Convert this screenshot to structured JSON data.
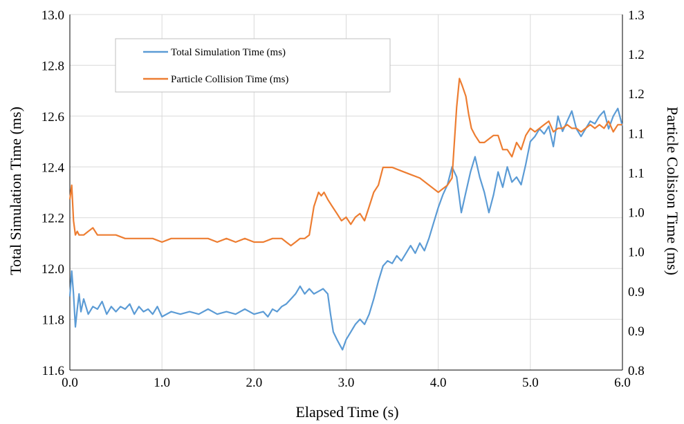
{
  "chart_data": {
    "type": "line",
    "xlabel": "Elapsed Time (s)",
    "ylabel_left": "Total Simulation Time (ms)",
    "ylabel_right": "Particle Colision Time (ms)",
    "x_ticks": [
      "0.0",
      "1.0",
      "2.0",
      "3.0",
      "4.0",
      "5.0",
      "6.0"
    ],
    "y_left_ticks": [
      "11.6",
      "11.8",
      "12.0",
      "12.2",
      "12.4",
      "12.6",
      "12.8",
      "13.0"
    ],
    "y_right_ticks": [
      "0.8",
      "0.9",
      "0.9",
      "1.0",
      "1.0",
      "1.1",
      "1.1",
      "1.2",
      "1.2",
      "1.3"
    ],
    "xlim": [
      0,
      6
    ],
    "ylim_left": [
      11.6,
      13.0
    ],
    "ylim_right": [
      0.8,
      1.3
    ],
    "grid": "on",
    "legend_position": "top-left",
    "series": [
      {
        "name": "Total Simulation Time (ms)",
        "axis": "left",
        "color": "#5b9bd5",
        "x": [
          0.0,
          0.02,
          0.04,
          0.06,
          0.08,
          0.1,
          0.12,
          0.15,
          0.2,
          0.25,
          0.3,
          0.35,
          0.4,
          0.45,
          0.5,
          0.55,
          0.6,
          0.65,
          0.7,
          0.75,
          0.8,
          0.85,
          0.9,
          0.95,
          1.0,
          1.1,
          1.2,
          1.3,
          1.4,
          1.5,
          1.6,
          1.7,
          1.8,
          1.9,
          2.0,
          2.1,
          2.15,
          2.2,
          2.25,
          2.3,
          2.35,
          2.4,
          2.45,
          2.5,
          2.55,
          2.6,
          2.65,
          2.7,
          2.75,
          2.8,
          2.83,
          2.86,
          2.9,
          2.93,
          2.96,
          3.0,
          3.05,
          3.1,
          3.15,
          3.2,
          3.25,
          3.3,
          3.35,
          3.4,
          3.45,
          3.5,
          3.55,
          3.6,
          3.65,
          3.7,
          3.75,
          3.8,
          3.85,
          3.9,
          3.95,
          4.0,
          4.05,
          4.1,
          4.15,
          4.2,
          4.25,
          4.3,
          4.35,
          4.4,
          4.45,
          4.5,
          4.55,
          4.6,
          4.65,
          4.7,
          4.75,
          4.8,
          4.85,
          4.9,
          4.95,
          5.0,
          5.05,
          5.1,
          5.15,
          5.2,
          5.25,
          5.3,
          5.35,
          5.4,
          5.45,
          5.5,
          5.55,
          5.6,
          5.65,
          5.7,
          5.75,
          5.8,
          5.85,
          5.9,
          5.95,
          6.0
        ],
        "values": [
          11.89,
          11.99,
          11.9,
          11.77,
          11.84,
          11.9,
          11.83,
          11.88,
          11.82,
          11.85,
          11.84,
          11.87,
          11.82,
          11.85,
          11.83,
          11.85,
          11.84,
          11.86,
          11.82,
          11.85,
          11.83,
          11.84,
          11.82,
          11.85,
          11.81,
          11.83,
          11.82,
          11.83,
          11.82,
          11.84,
          11.82,
          11.83,
          11.82,
          11.84,
          11.82,
          11.83,
          11.81,
          11.84,
          11.83,
          11.85,
          11.86,
          11.88,
          11.9,
          11.93,
          11.9,
          11.92,
          11.9,
          11.91,
          11.92,
          11.9,
          11.82,
          11.75,
          11.72,
          11.7,
          11.68,
          11.72,
          11.75,
          11.78,
          11.8,
          11.78,
          11.82,
          11.88,
          11.95,
          12.01,
          12.03,
          12.02,
          12.05,
          12.03,
          12.06,
          12.09,
          12.06,
          12.1,
          12.07,
          12.12,
          12.18,
          12.24,
          12.29,
          12.33,
          12.4,
          12.36,
          12.22,
          12.3,
          12.38,
          12.44,
          12.36,
          12.3,
          12.22,
          12.29,
          12.38,
          12.32,
          12.4,
          12.34,
          12.36,
          12.33,
          12.41,
          12.5,
          12.52,
          12.55,
          12.53,
          12.56,
          12.48,
          12.6,
          12.54,
          12.58,
          12.62,
          12.55,
          12.52,
          12.55,
          12.58,
          12.57,
          12.6,
          12.62,
          12.55,
          12.6,
          12.63,
          12.56
        ]
      },
      {
        "name": "Particle Collision Time (ms)",
        "axis": "right",
        "color": "#ed7d31",
        "x": [
          0.0,
          0.02,
          0.04,
          0.06,
          0.08,
          0.1,
          0.15,
          0.2,
          0.25,
          0.3,
          0.4,
          0.5,
          0.6,
          0.7,
          0.8,
          0.9,
          1.0,
          1.1,
          1.2,
          1.3,
          1.4,
          1.5,
          1.6,
          1.7,
          1.8,
          1.9,
          2.0,
          2.1,
          2.2,
          2.3,
          2.35,
          2.4,
          2.45,
          2.5,
          2.55,
          2.6,
          2.65,
          2.7,
          2.73,
          2.76,
          2.8,
          2.85,
          2.9,
          2.95,
          3.0,
          3.05,
          3.1,
          3.15,
          3.2,
          3.25,
          3.3,
          3.35,
          3.4,
          3.45,
          3.5,
          3.6,
          3.7,
          3.8,
          3.9,
          4.0,
          4.05,
          4.1,
          4.15,
          4.2,
          4.23,
          4.26,
          4.3,
          4.33,
          4.36,
          4.4,
          4.45,
          4.5,
          4.55,
          4.6,
          4.65,
          4.7,
          4.75,
          4.8,
          4.85,
          4.9,
          4.95,
          5.0,
          5.05,
          5.1,
          5.15,
          5.2,
          5.25,
          5.3,
          5.35,
          5.4,
          5.45,
          5.5,
          5.55,
          5.6,
          5.65,
          5.7,
          5.75,
          5.8,
          5.85,
          5.9,
          5.95,
          6.0
        ],
        "values": [
          1.04,
          1.06,
          1.01,
          0.99,
          0.995,
          0.99,
          0.99,
          0.995,
          1.0,
          0.99,
          0.99,
          0.99,
          0.985,
          0.985,
          0.985,
          0.985,
          0.98,
          0.985,
          0.985,
          0.985,
          0.985,
          0.985,
          0.98,
          0.985,
          0.98,
          0.985,
          0.98,
          0.98,
          0.985,
          0.985,
          0.98,
          0.975,
          0.98,
          0.985,
          0.985,
          0.99,
          1.03,
          1.05,
          1.045,
          1.05,
          1.04,
          1.03,
          1.02,
          1.01,
          1.015,
          1.005,
          1.015,
          1.02,
          1.01,
          1.03,
          1.05,
          1.06,
          1.085,
          1.085,
          1.085,
          1.08,
          1.075,
          1.07,
          1.06,
          1.05,
          1.055,
          1.06,
          1.07,
          1.17,
          1.21,
          1.2,
          1.185,
          1.16,
          1.14,
          1.13,
          1.12,
          1.12,
          1.125,
          1.13,
          1.13,
          1.11,
          1.11,
          1.1,
          1.12,
          1.11,
          1.13,
          1.14,
          1.135,
          1.14,
          1.145,
          1.15,
          1.135,
          1.14,
          1.14,
          1.145,
          1.14,
          1.14,
          1.135,
          1.14,
          1.145,
          1.14,
          1.145,
          1.14,
          1.15,
          1.135,
          1.145,
          1.145
        ]
      }
    ]
  }
}
